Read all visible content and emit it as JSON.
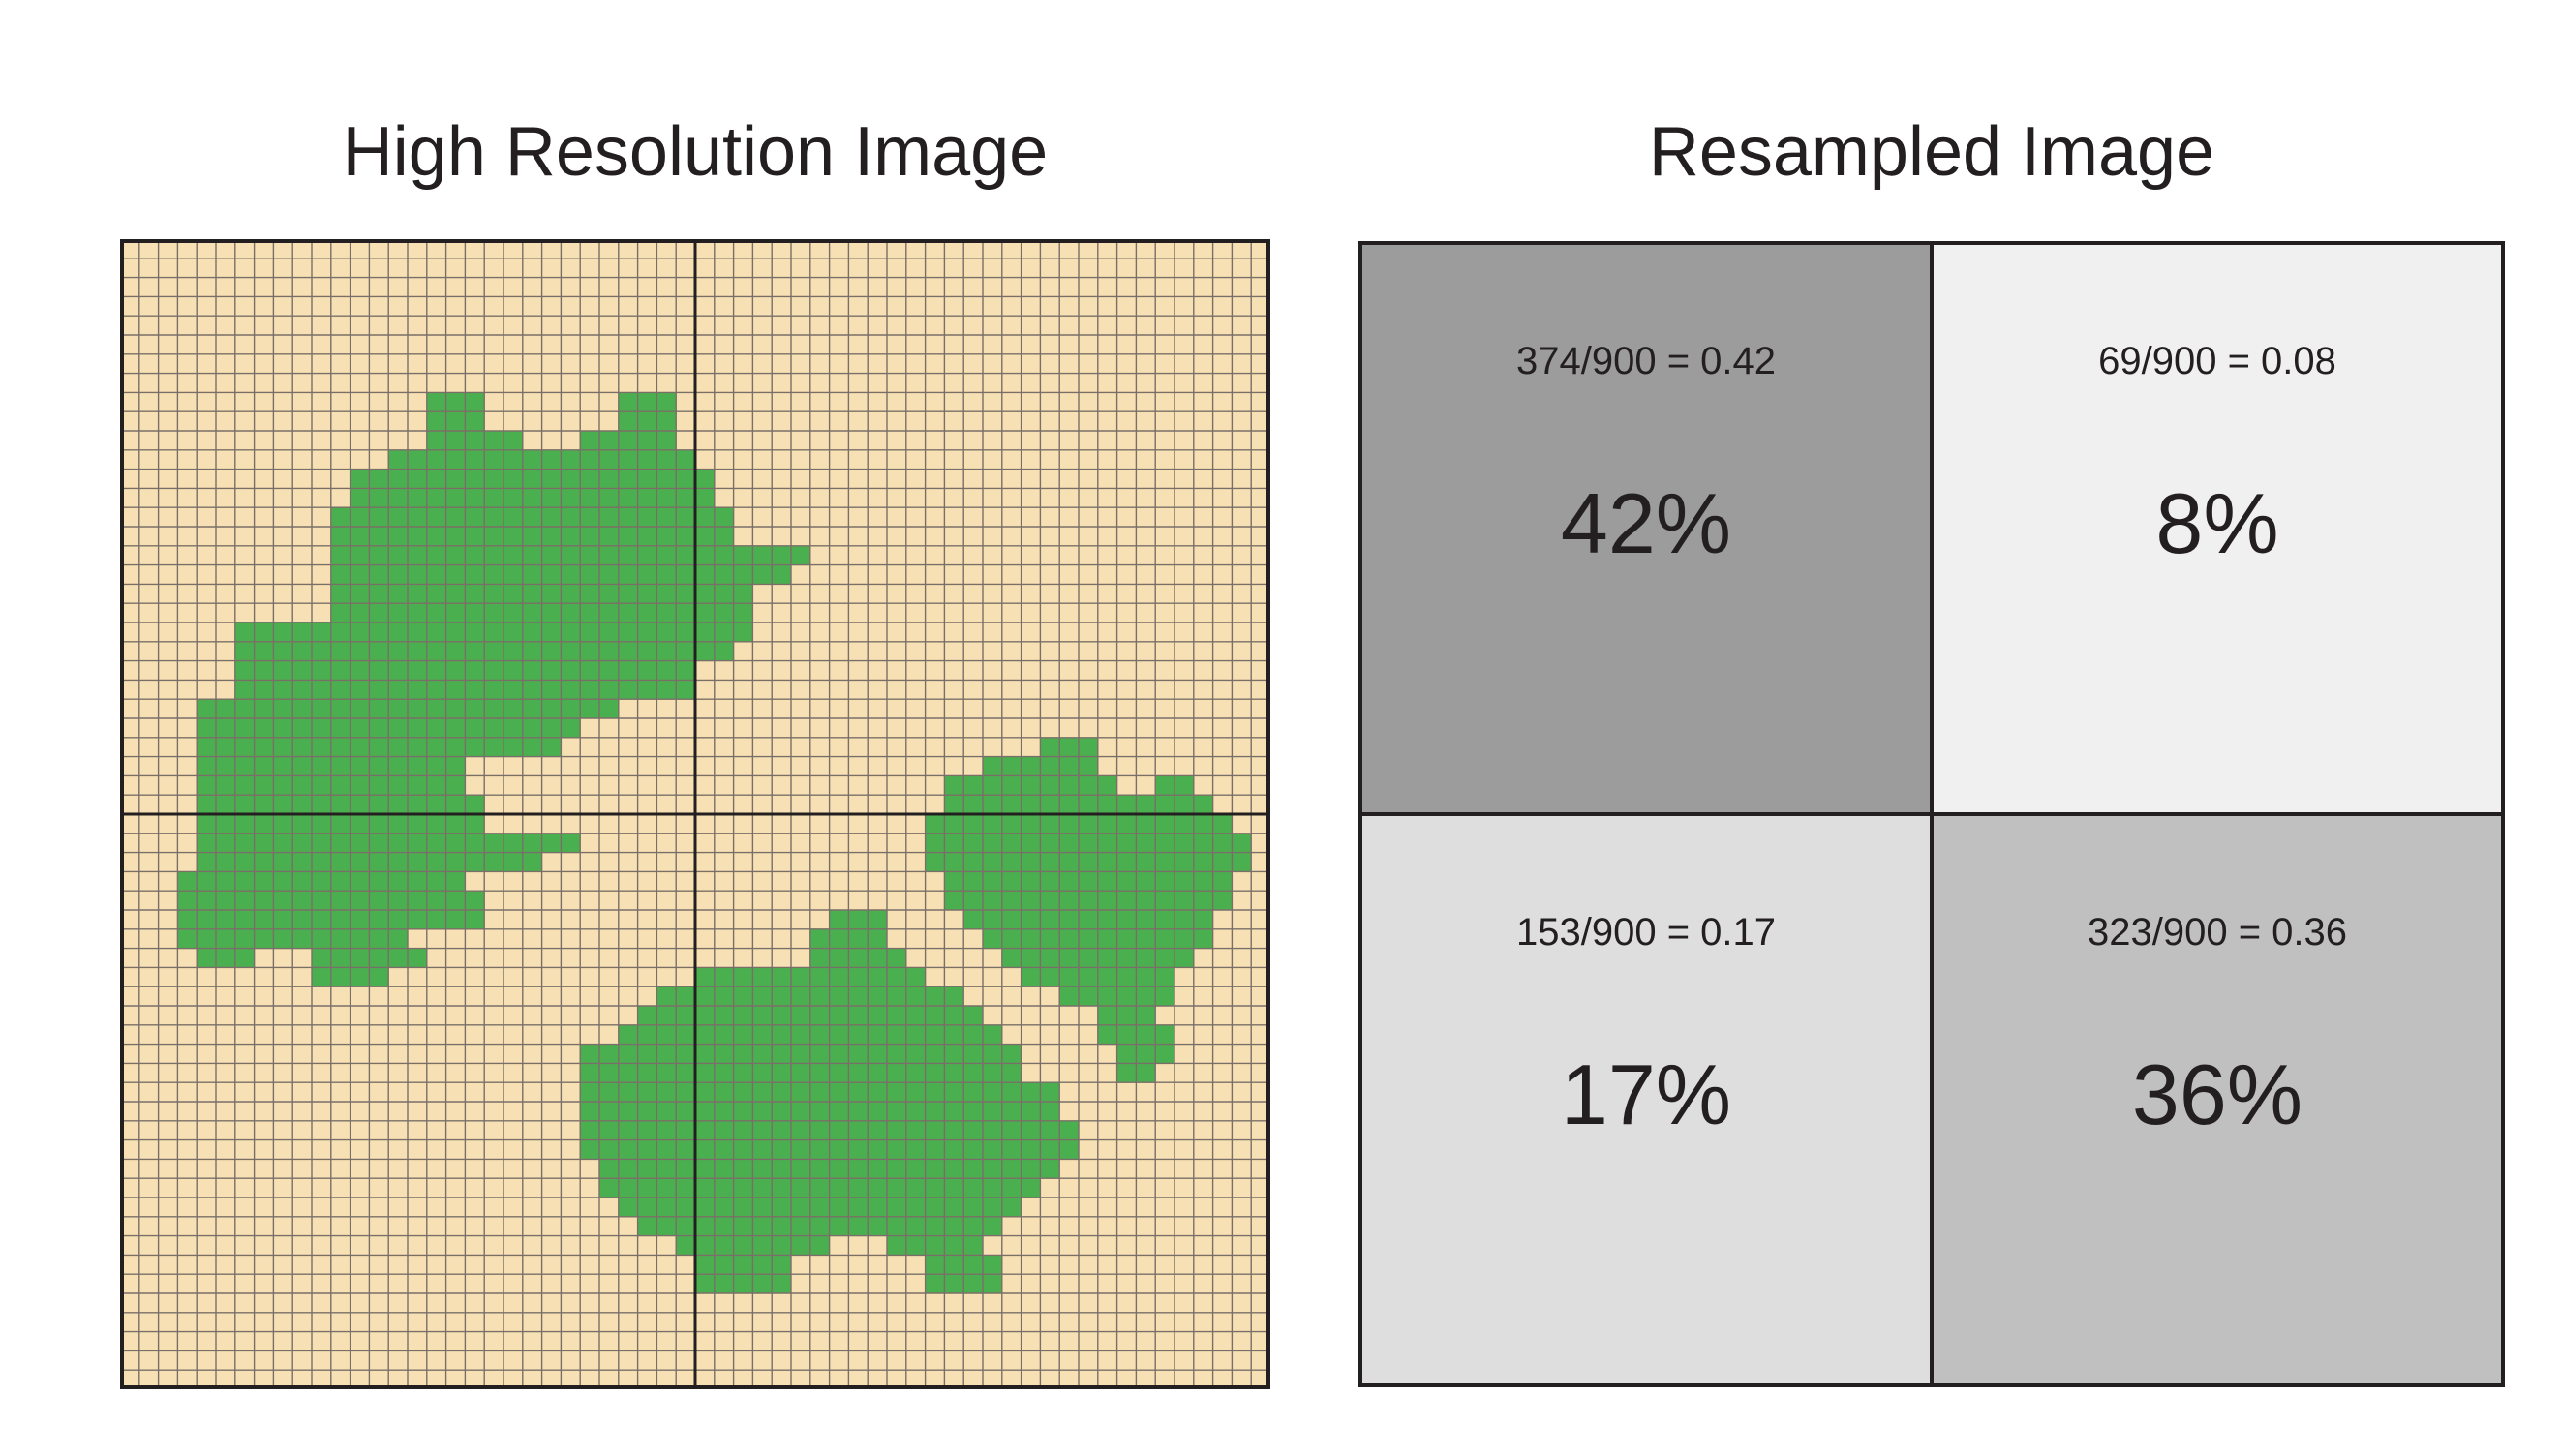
{
  "titles": {
    "left": "High Resolution Image",
    "right": "Resampled Image"
  },
  "grid": {
    "cells_per_side": 60,
    "blocks_per_side": 2,
    "colors": {
      "background": "#f7e1b4",
      "fill": "#4ab04f",
      "gridline": "#7a6f68",
      "block_line": "#231f20"
    },
    "shape_rows": [
      [
        8,
        16,
        18,
        22,
        26,
        30
      ],
      [
        8,
        16,
        18,
        22,
        26,
        30
      ],
      [
        8,
        16,
        18,
        23,
        26,
        30
      ],
      [
        8,
        18,
        23,
        30
      ],
      [
        8,
        18,
        24,
        30,
        48,
        54
      ],
      [
        8,
        18,
        24,
        33
      ],
      [
        8,
        18,
        24,
        33
      ],
      [
        8,
        16,
        26,
        32,
        48,
        54
      ],
      [
        8,
        16,
        26,
        32
      ],
      [
        10,
        18,
        26,
        30
      ],
      [
        10,
        18,
        27,
        28
      ]
    ]
  },
  "resampled": {
    "cells": [
      {
        "formula": "374/900 = 0.42",
        "percent": "42%",
        "fraction": 0.42,
        "color": "#9c9c9c"
      },
      {
        "formula": "69/900 = 0.08",
        "percent": "8%",
        "fraction": 0.08,
        "color": "#f0f0f0"
      },
      {
        "formula": "153/900 = 0.17",
        "percent": "17%",
        "fraction": 0.17,
        "color": "#dedede"
      },
      {
        "formula": "323/900 = 0.36",
        "percent": "36%",
        "fraction": 0.36,
        "color": "#c0c0c0"
      }
    ]
  }
}
